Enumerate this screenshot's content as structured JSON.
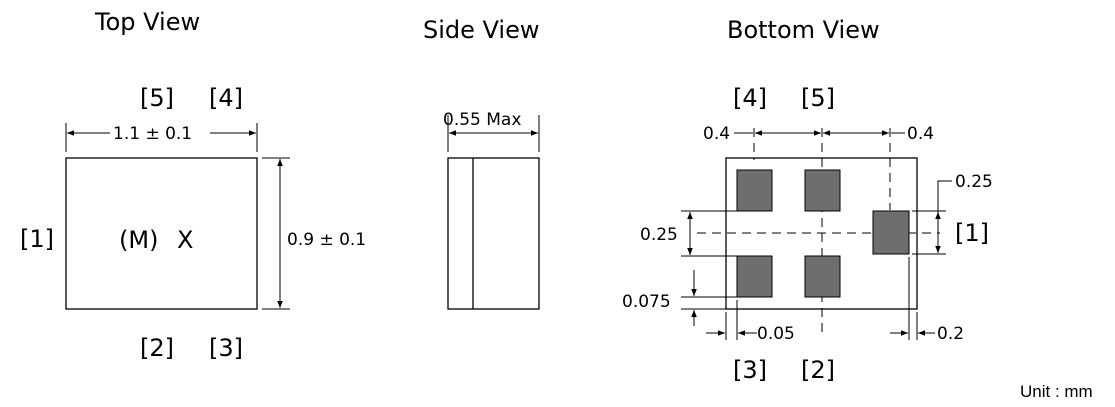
{
  "top_view": {
    "title": "Top View",
    "pins_top": [
      "[5]",
      "[4]"
    ],
    "pins_bottom": [
      "[2]",
      "[3]"
    ],
    "pin_left": "[1]",
    "marking": [
      "(M)",
      "X"
    ],
    "width_dim": "1.1 ± 0.1",
    "height_dim": "0.9 ± 0.1"
  },
  "side_view": {
    "title": "Side View",
    "height_dim": "0.55 Max"
  },
  "bottom_view": {
    "title": "Bottom View",
    "pins_top": [
      "[4]",
      "[5]"
    ],
    "pins_bottom": [
      "[3]",
      "[2]"
    ],
    "pin_right": "[1]",
    "dims": {
      "pitch_left": "0.4",
      "pitch_right": "0.4",
      "pad_right_height": "0.25",
      "gap_left": "0.25",
      "pad_offset_left": "0.075",
      "pad_offset_bottom": "0.05",
      "pad_right_edge": "0.2"
    }
  },
  "unit_label": "Unit : mm"
}
